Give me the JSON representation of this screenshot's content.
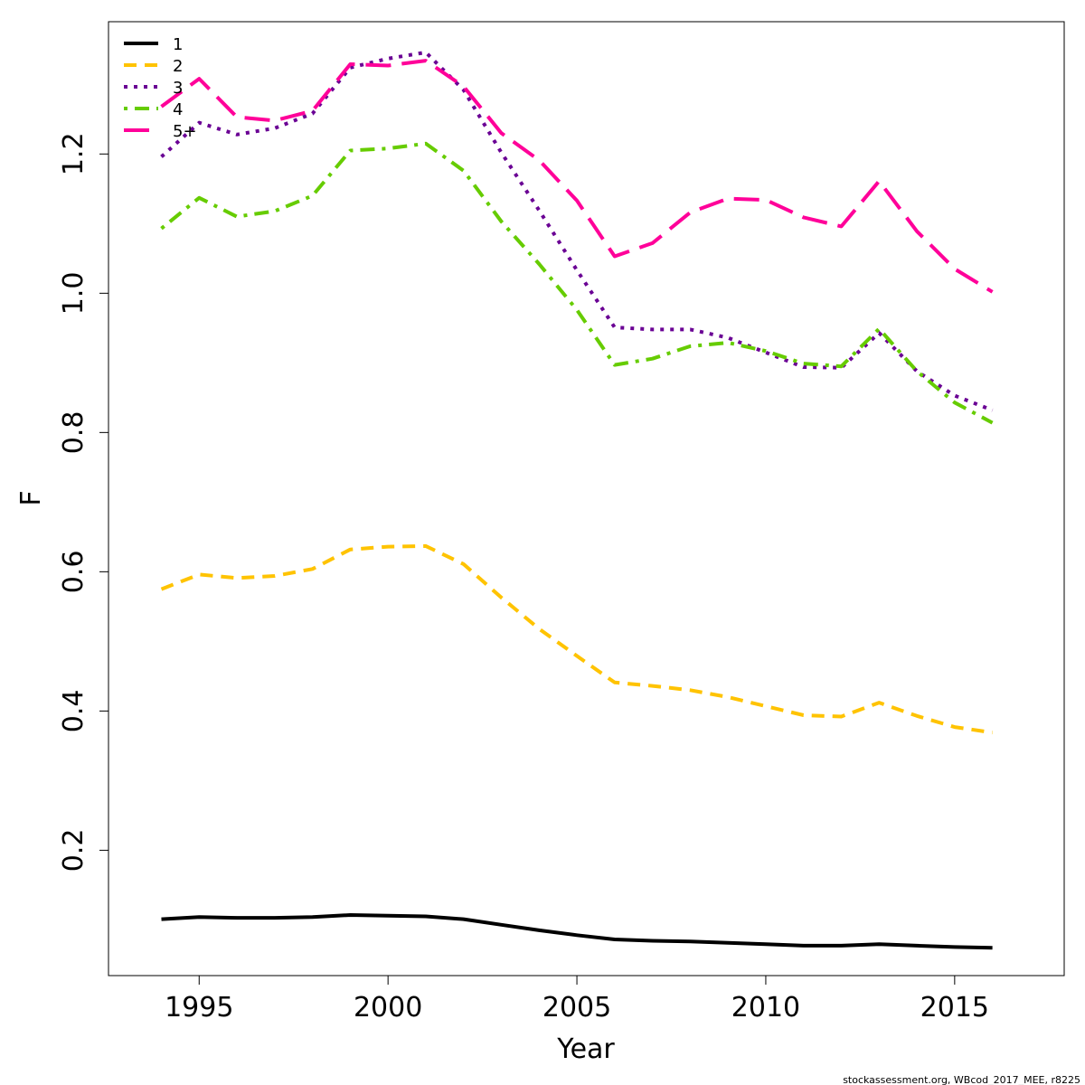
{
  "chart_data": {
    "type": "line",
    "xlabel": "Year",
    "ylabel": "F",
    "xlim": [
      1992.6,
      2017.9
    ],
    "ylim": [
      0.02,
      1.39
    ],
    "x_ticks": [
      1995,
      2000,
      2005,
      2010,
      2015
    ],
    "y_ticks": [
      0.2,
      0.4,
      0.6,
      0.8,
      1.0,
      1.2
    ],
    "y_tick_labels": [
      "0.2",
      "0.4",
      "0.6",
      "0.8",
      "1.0",
      "1.2"
    ],
    "legend_position": "top-left",
    "x": [
      1994,
      1995,
      1996,
      1997,
      1998,
      1999,
      2000,
      2001,
      2002,
      2003,
      2004,
      2005,
      2006,
      2007,
      2008,
      2009,
      2010,
      2011,
      2012,
      2013,
      2014,
      2015,
      2016
    ],
    "series": [
      {
        "name": "1",
        "color": "#000000",
        "dash": "solid",
        "values": [
          0.101,
          0.104,
          0.103,
          0.103,
          0.104,
          0.107,
          0.106,
          0.105,
          0.101,
          0.093,
          0.085,
          0.078,
          0.072,
          0.07,
          0.069,
          0.067,
          0.065,
          0.063,
          0.063,
          0.065,
          0.063,
          0.061,
          0.06
        ]
      },
      {
        "name": "2",
        "color": "#FFC300",
        "dash": "dashed",
        "values": [
          0.575,
          0.596,
          0.591,
          0.594,
          0.604,
          0.632,
          0.636,
          0.637,
          0.611,
          0.563,
          0.518,
          0.479,
          0.441,
          0.436,
          0.43,
          0.42,
          0.407,
          0.394,
          0.392,
          0.412,
          0.393,
          0.377,
          0.369
        ]
      },
      {
        "name": "3",
        "color": "#6A0094",
        "dash": "dotted",
        "values": [
          1.196,
          1.245,
          1.228,
          1.237,
          1.258,
          1.324,
          1.337,
          1.346,
          1.292,
          1.202,
          1.119,
          1.033,
          0.951,
          0.948,
          0.948,
          0.936,
          0.915,
          0.894,
          0.893,
          0.943,
          0.888,
          0.853,
          0.832
        ]
      },
      {
        "name": "4",
        "color": "#66CC00",
        "dash": "dotdash",
        "values": [
          1.093,
          1.137,
          1.11,
          1.118,
          1.14,
          1.205,
          1.208,
          1.215,
          1.176,
          1.103,
          1.042,
          0.976,
          0.897,
          0.906,
          0.924,
          0.929,
          0.917,
          0.899,
          0.895,
          0.949,
          0.888,
          0.843,
          0.814
        ]
      },
      {
        "name": "5+",
        "color": "#FF0099",
        "dash": "longdash",
        "values": [
          1.268,
          1.308,
          1.253,
          1.248,
          1.262,
          1.329,
          1.327,
          1.334,
          1.297,
          1.23,
          1.191,
          1.133,
          1.053,
          1.072,
          1.116,
          1.136,
          1.134,
          1.109,
          1.096,
          1.161,
          1.089,
          1.035,
          1.002
        ]
      }
    ]
  },
  "footer": "stockassessment.org, WBcod_2017_MEE, r8225"
}
